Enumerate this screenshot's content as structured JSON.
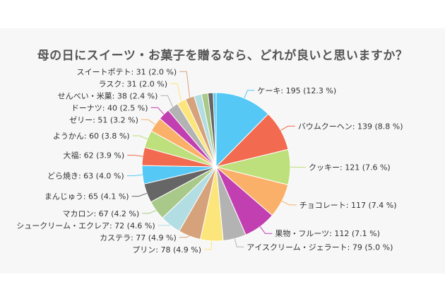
{
  "chart_data": {
    "type": "pie",
    "title": "母の日にスイーツ・お菓子を贈るなら、どれが良いと思いますか？",
    "slices": [
      {
        "label": "ケーキ",
        "value": 195,
        "percent": "12.3 %",
        "color": "#56c8f5"
      },
      {
        "label": "バウムクーヘン",
        "value": 139,
        "percent": "8.8 %",
        "color": "#f26b50"
      },
      {
        "label": "クッキー",
        "value": 121,
        "percent": "7.6 %",
        "color": "#bde07c"
      },
      {
        "label": "チョコレート",
        "value": 117,
        "percent": "7.4 %",
        "color": "#fbb06a"
      },
      {
        "label": "果物・フルーツ",
        "value": 112,
        "percent": "7.1 %",
        "color": "#c13fb0"
      },
      {
        "label": "アイスクリーム・ジェラート",
        "value": 79,
        "percent": "5.0 %",
        "color": "#b3b3b3"
      },
      {
        "label": "プリン",
        "value": 78,
        "percent": "4.9 %",
        "color": "#fce57a"
      },
      {
        "label": "カステラ",
        "value": 77,
        "percent": "4.9 %",
        "color": "#d6a27b"
      },
      {
        "label": "シュークリーム・エクレア",
        "value": 72,
        "percent": "4.6 %",
        "color": "#b2dde2"
      },
      {
        "label": "マカロン",
        "value": 67,
        "percent": "4.2 %",
        "color": "#a9c98a"
      },
      {
        "label": "まんじゅう",
        "value": 65,
        "percent": "4.1 %",
        "color": "#666666"
      },
      {
        "label": "どら焼き",
        "value": 63,
        "percent": "4.0 %",
        "color": "#56c8f5"
      },
      {
        "label": "大福",
        "value": 62,
        "percent": "3.9 %",
        "color": "#f26b50"
      },
      {
        "label": "ようかん",
        "value": 60,
        "percent": "3.8 %",
        "color": "#bde07c"
      },
      {
        "label": "ゼリー",
        "value": 51,
        "percent": "3.2 %",
        "color": "#fbb06a"
      },
      {
        "label": "ドーナツ",
        "value": 40,
        "percent": "2.5 %",
        "color": "#c13fb0"
      },
      {
        "label": "せんべい・米菓",
        "value": 38,
        "percent": "2.4 %",
        "color": "#b3b3b3"
      },
      {
        "label": "ラスク",
        "value": 31,
        "percent": "2.0 %",
        "color": "#fce57a"
      },
      {
        "label": "スイートポテト",
        "value": 31,
        "percent": "2.0 %",
        "color": "#d6a27b"
      },
      {
        "value": 26,
        "color": "#b2dde2"
      },
      {
        "value": 22,
        "color": "#a9c98a"
      },
      {
        "value": 18,
        "color": "#666666"
      },
      {
        "value": 10,
        "color": "#56c8f5"
      }
    ]
  }
}
